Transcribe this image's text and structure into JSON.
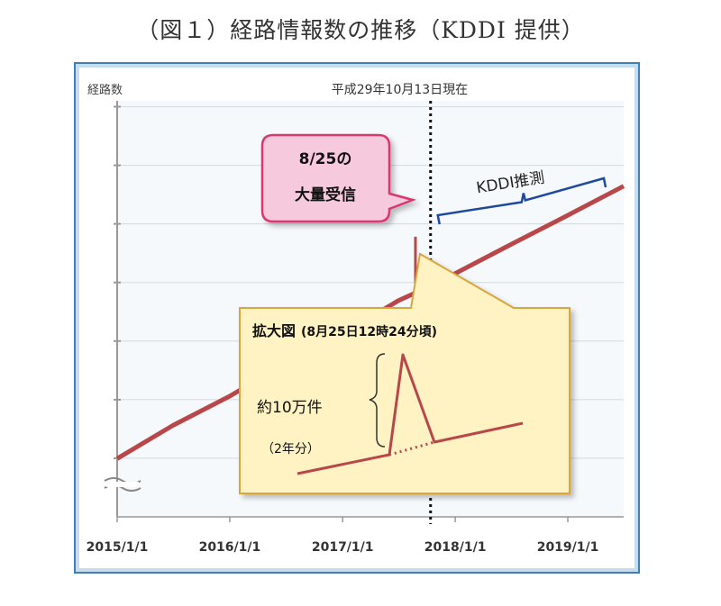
{
  "title": "（図１）経路情報数の推移（KDDI 提供）",
  "chart_data": {
    "type": "line",
    "ylabel": "経路数",
    "x_ticks": [
      "2015/1/1",
      "2016/1/1",
      "2017/1/1",
      "2018/1/1",
      "2019/1/1"
    ],
    "x_range": [
      "2015/1/1",
      "2019/7/1"
    ],
    "series": [
      {
        "role": "actual",
        "x": [
          "2015/1/1",
          "2015/7/1",
          "2016/1/1",
          "2016/7/1",
          "2017/1/1",
          "2017/7/1",
          "2017/10/13"
        ],
        "y": [
          0.14,
          0.22,
          0.29,
          0.37,
          0.44,
          0.52,
          0.555
        ]
      },
      {
        "role": "forecast",
        "x": [
          "2017/10/13",
          "2018/1/1",
          "2018/7/1",
          "2019/1/1",
          "2019/7/1"
        ],
        "y": [
          0.555,
          0.585,
          0.655,
          0.725,
          0.795
        ]
      }
    ],
    "spike": {
      "date": "2017/8/25",
      "label_line1": "8/25の",
      "label_line2": "大量受信"
    },
    "current_date_line": {
      "date": "2017/10/13",
      "label": "平成29年10月13日現在"
    },
    "forecast_label": "KDDI推測",
    "inset": {
      "title": "拡大図",
      "subtitle": "(8月25日12時24分頃)",
      "spike_label": "約10万件",
      "note": "（2年分）"
    }
  },
  "colors": {
    "line": "#b8474a",
    "frame_border": "#3e7fb6",
    "plot_bg": "#f6f9fc",
    "callout_fill": "#f7c9dd",
    "callout_stroke": "#d9386d",
    "inset_fill": "#fff3c4",
    "inset_stroke": "#d8a63b",
    "brace": "#1f4a9c"
  }
}
